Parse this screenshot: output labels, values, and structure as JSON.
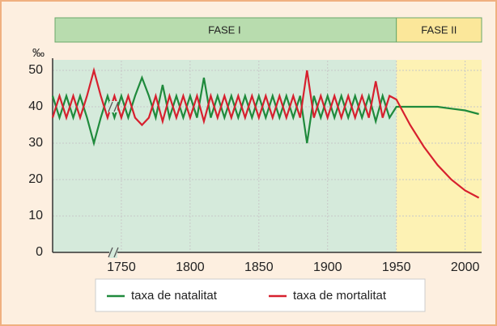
{
  "chart_data": {
    "type": "line",
    "y_label": "‰",
    "phases": [
      {
        "label": "FASE I",
        "from": 1700,
        "to": 1950,
        "color": "#d5eadb",
        "header_color": "#b8dcae"
      },
      {
        "label": "FASE II",
        "from": 1950,
        "to": 2012,
        "color": "#fdf2b4",
        "header_color": "#fbe79a"
      }
    ],
    "x": [
      1700,
      1705,
      1710,
      1715,
      1720,
      1725,
      1730,
      1735,
      1740,
      1745,
      1750,
      1755,
      1760,
      1765,
      1770,
      1775,
      1780,
      1785,
      1790,
      1795,
      1800,
      1805,
      1810,
      1815,
      1820,
      1825,
      1830,
      1835,
      1840,
      1845,
      1850,
      1855,
      1860,
      1865,
      1870,
      1875,
      1880,
      1885,
      1890,
      1895,
      1900,
      1905,
      1910,
      1915,
      1920,
      1925,
      1930,
      1935,
      1940,
      1945,
      1950,
      1960,
      1970,
      1980,
      1990,
      2000,
      2010
    ],
    "series": [
      {
        "name": "taxa de natalitat",
        "color": "#1f8a3c",
        "values": [
          43,
          37,
          43,
          37,
          43,
          37,
          30,
          37,
          43,
          37,
          43,
          37,
          43,
          48,
          43,
          37,
          46,
          37,
          43,
          37,
          43,
          37,
          48,
          37,
          43,
          37,
          43,
          37,
          43,
          37,
          43,
          37,
          43,
          37,
          43,
          37,
          43,
          30,
          43,
          37,
          43,
          37,
          43,
          37,
          43,
          37,
          43,
          36,
          43,
          37,
          40,
          40,
          40,
          40,
          39.5,
          39,
          38
        ]
      },
      {
        "name": "taxa de mortalitat",
        "color": "#d7202e",
        "values": [
          37,
          43,
          37,
          43,
          37,
          43,
          50,
          43,
          37,
          43,
          37,
          43,
          37,
          35,
          37,
          43,
          36,
          43,
          37,
          43,
          37,
          43,
          36,
          43,
          37,
          43,
          37,
          43,
          37,
          43,
          37,
          43,
          37,
          43,
          37,
          43,
          37,
          50,
          37,
          43,
          37,
          43,
          37,
          43,
          37,
          43,
          37,
          47,
          37,
          43,
          42,
          35,
          29,
          24,
          20,
          17,
          15
        ]
      }
    ],
    "xlim": [
      1700,
      2012
    ],
    "xticks": [
      1750,
      1800,
      1850,
      1900,
      1950,
      2000
    ],
    "ylim": [
      0,
      50
    ],
    "yticks": [
      0,
      10,
      20,
      30,
      40,
      50
    ],
    "grid": true
  }
}
